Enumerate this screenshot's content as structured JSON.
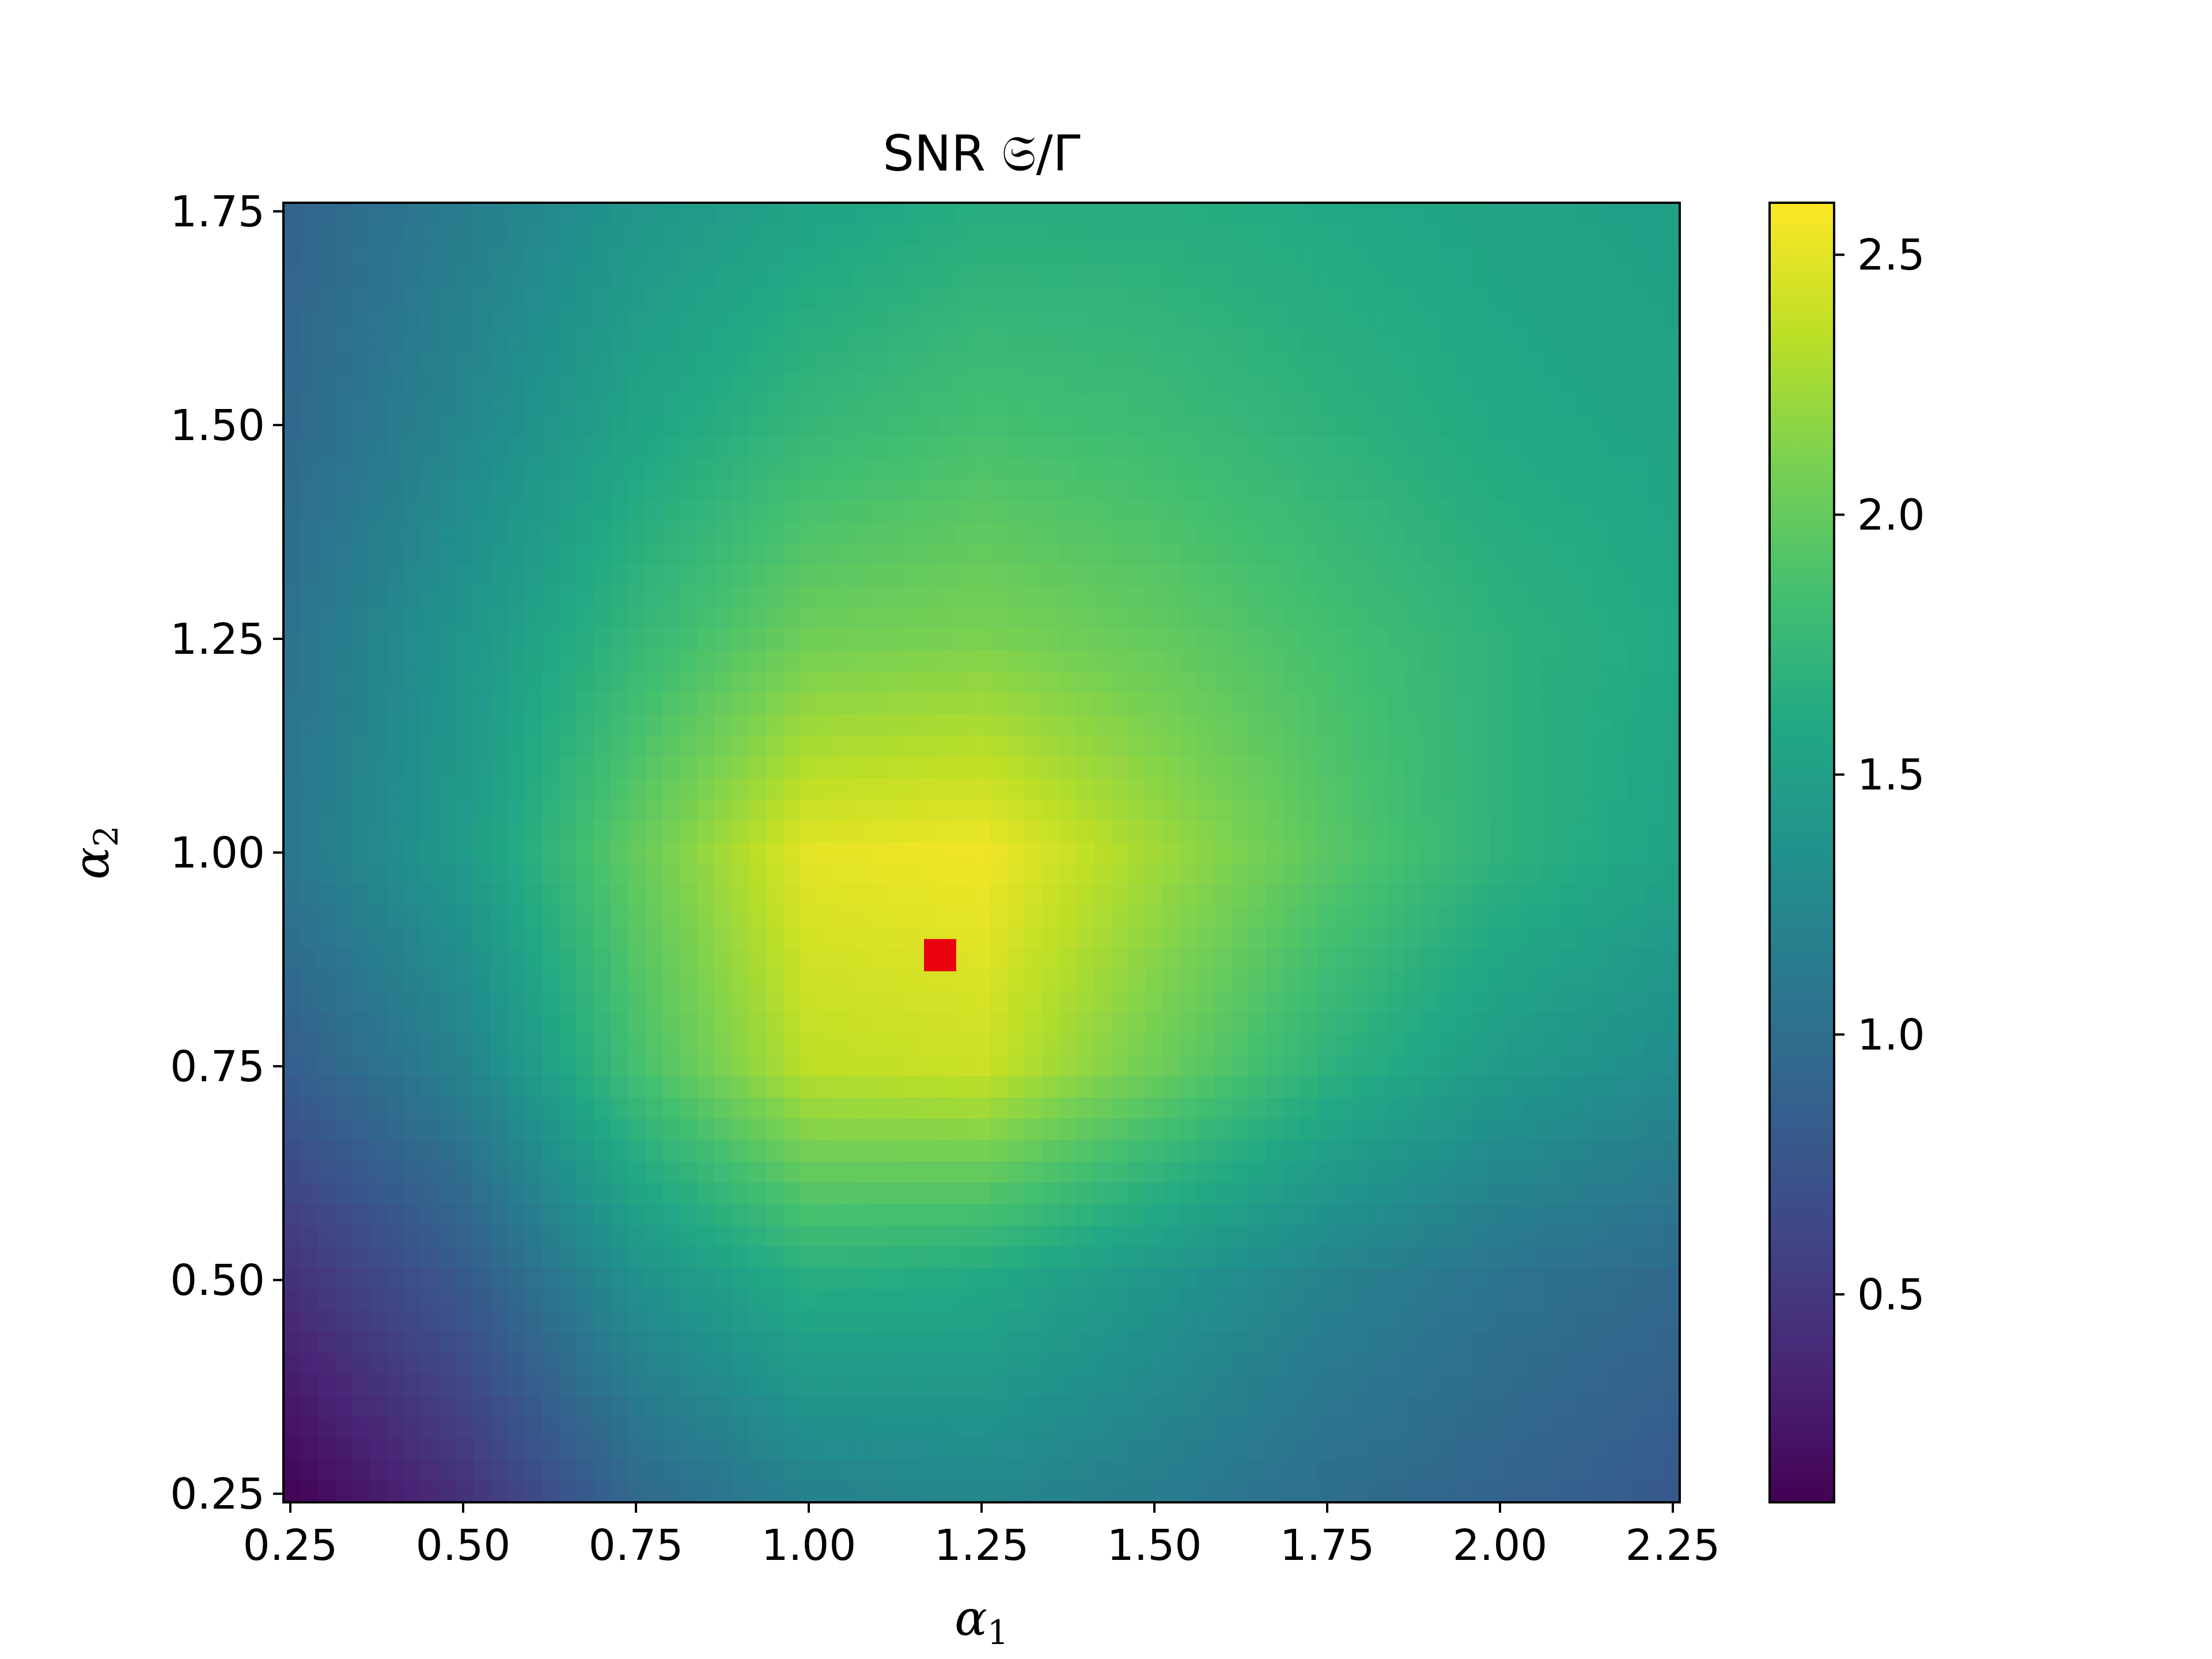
{
  "chart_data": {
    "type": "heatmap",
    "title": "SNR 𝔖/Γ",
    "xlabel": {
      "symbol": "α",
      "subscript": "1"
    },
    "ylabel": {
      "symbol": "α",
      "subscript": "2"
    },
    "xlim": [
      0.24,
      2.26
    ],
    "ylim": [
      0.24,
      1.76
    ],
    "xticks": [
      0.25,
      0.5,
      0.75,
      1.0,
      1.25,
      1.5,
      1.75,
      2.0,
      2.25
    ],
    "xtick_labels": [
      "0.25",
      "0.50",
      "0.75",
      "1.00",
      "1.25",
      "1.50",
      "1.75",
      "2.00",
      "2.25"
    ],
    "yticks": [
      0.25,
      0.5,
      0.75,
      1.0,
      1.25,
      1.5,
      1.75
    ],
    "ytick_labels": [
      "0.25",
      "0.50",
      "0.75",
      "1.00",
      "1.25",
      "1.50",
      "1.75"
    ],
    "colormap": "viridis",
    "colorbar": {
      "range": [
        0.1,
        2.6
      ],
      "ticks": [
        0.5,
        1.0,
        1.5,
        2.0,
        2.5
      ],
      "tick_labels": [
        "0.5",
        "1.0",
        "1.5",
        "2.0",
        "2.5"
      ]
    },
    "grid": false,
    "field": {
      "description_of_values": "sampled SNR on a regular grid",
      "x": [
        0.25,
        0.5,
        0.75,
        1.0,
        1.25,
        1.5,
        1.75,
        2.0,
        2.25
      ],
      "y": [
        0.25,
        0.5,
        0.75,
        1.0,
        1.25,
        1.5,
        1.75
      ],
      "z": [
        [
          0.12,
          0.45,
          0.95,
          1.2,
          1.25,
          1.15,
          1.0,
          0.9,
          0.8
        ],
        [
          0.45,
          0.8,
          1.35,
          1.65,
          1.6,
          1.4,
          1.2,
          1.05,
          0.95
        ],
        [
          0.85,
          1.2,
          1.85,
          2.35,
          2.4,
          2.05,
          1.7,
          1.45,
          1.3
        ],
        [
          1.1,
          1.45,
          2.0,
          2.5,
          2.55,
          2.25,
          1.95,
          1.7,
          1.55
        ],
        [
          1.05,
          1.4,
          1.75,
          2.05,
          2.1,
          2.0,
          1.85,
          1.7,
          1.6
        ],
        [
          0.95,
          1.25,
          1.55,
          1.75,
          1.85,
          1.8,
          1.7,
          1.6,
          1.55
        ],
        [
          0.9,
          1.15,
          1.4,
          1.55,
          1.65,
          1.65,
          1.6,
          1.55,
          1.5
        ]
      ]
    },
    "marker": {
      "x": 1.19,
      "y": 0.88,
      "shape": "square",
      "color": "#e8000b"
    }
  }
}
